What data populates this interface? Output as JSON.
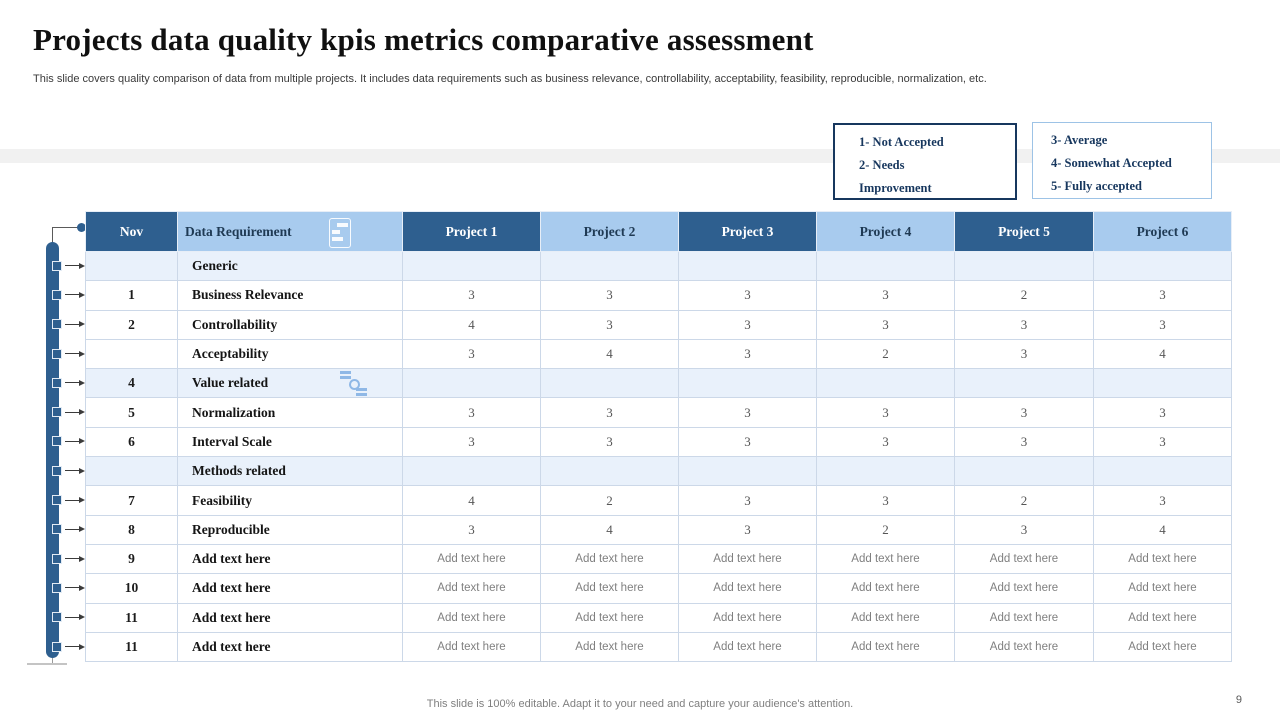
{
  "slide": {
    "title": "Projects data quality kpis metrics comparative assessment",
    "subtitle": "This slide covers quality comparison of data from multiple projects. It includes data requirements such as business relevance, controllability, acceptability, feasibility, reproducible, normalization, etc.",
    "footer": "This slide is 100% editable. Adapt it to your need and capture your audience's attention.",
    "page_number": "9"
  },
  "legend_left": {
    "lines": [
      "1- Not Accepted",
      "2- Needs",
      "Improvement"
    ]
  },
  "legend_right": {
    "lines": [
      "3- Average",
      "4- Somewhat Accepted",
      "5- Fully accepted"
    ]
  },
  "table": {
    "headers": [
      "Nov",
      "Data Requirement",
      "Project 1",
      "Project 2",
      "Project 3",
      "Project 4",
      "Project 5",
      "Project 6"
    ],
    "header_icon": "list-icon",
    "rows": [
      {
        "num": "",
        "label": "Generic",
        "type": "section",
        "values": [
          "",
          "",
          "",
          "",
          "",
          ""
        ]
      },
      {
        "num": "1",
        "label": "Business Relevance",
        "type": "data",
        "values": [
          "3",
          "3",
          "3",
          "3",
          "2",
          "3"
        ]
      },
      {
        "num": "2",
        "label": "Controllability",
        "type": "data",
        "values": [
          "4",
          "3",
          "3",
          "3",
          "3",
          "3"
        ]
      },
      {
        "num": "",
        "label": "Acceptability",
        "type": "data",
        "values": [
          "3",
          "4",
          "3",
          "2",
          "3",
          "4"
        ]
      },
      {
        "num": "4",
        "label": "Value related",
        "type": "section",
        "icon": "flow-icon",
        "values": [
          "",
          "",
          "",
          "",
          "",
          ""
        ]
      },
      {
        "num": "5",
        "label": "Normalization",
        "type": "data",
        "values": [
          "3",
          "3",
          "3",
          "3",
          "3",
          "3"
        ]
      },
      {
        "num": "6",
        "label": "Interval Scale",
        "type": "data",
        "values": [
          "3",
          "3",
          "3",
          "3",
          "3",
          "3"
        ]
      },
      {
        "num": "",
        "label": "Methods related",
        "type": "section",
        "values": [
          "",
          "",
          "",
          "",
          "",
          ""
        ]
      },
      {
        "num": "7",
        "label": "Feasibility",
        "type": "data",
        "values": [
          "4",
          "2",
          "3",
          "3",
          "2",
          "3"
        ]
      },
      {
        "num": "8",
        "label": "Reproducible",
        "type": "data",
        "values": [
          "3",
          "4",
          "3",
          "2",
          "3",
          "4"
        ]
      },
      {
        "num": "9",
        "label": "Add text here",
        "type": "placeholder",
        "values": [
          "Add text here",
          "Add text here",
          "Add text here",
          "Add text here",
          "Add text here",
          "Add text here"
        ]
      },
      {
        "num": "10",
        "label": "Add text here",
        "type": "placeholder",
        "values": [
          "Add text here",
          "Add text here",
          "Add text here",
          "Add text here",
          "Add text here",
          "Add text here"
        ]
      },
      {
        "num": "11",
        "label": "Add text here",
        "type": "placeholder",
        "values": [
          "Add text here",
          "Add text here",
          "Add text here",
          "Add text here",
          "Add text here",
          "Add text here"
        ]
      },
      {
        "num": "11",
        "label": "Add text here",
        "type": "placeholder",
        "values": [
          "Add text here",
          "Add text here",
          "Add text here",
          "Add text here",
          "Add text here",
          "Add text here"
        ]
      }
    ]
  },
  "colors": {
    "header_dark_blue": "#2e5f8f",
    "header_light_blue": "#a8cbee",
    "section_row_blue": "#e9f1fb",
    "band_gray": "#f1f1f1",
    "legend_border_dark": "#17375e",
    "legend_border_light": "#9dc3e6",
    "navy_text": "#1f3a54"
  },
  "icons": {
    "header_icon": "list-icon",
    "value_related_icon": "flow-icon"
  }
}
